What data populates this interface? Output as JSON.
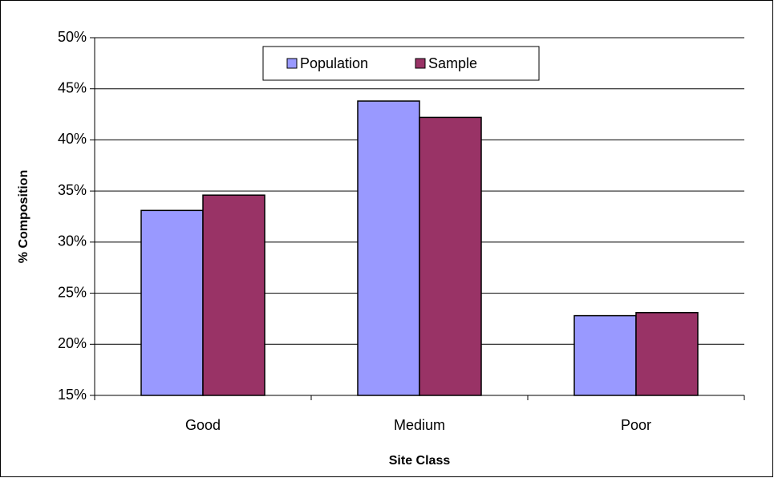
{
  "chart_data": {
    "type": "bar",
    "x_label": "Site Class",
    "y_label": "% Composition",
    "categories": [
      "Good",
      "Medium",
      "Poor"
    ],
    "series": [
      {
        "name": "Population",
        "color": "#9999ff",
        "values": [
          33.1,
          43.8,
          22.8
        ]
      },
      {
        "name": "Sample",
        "color": "#993366",
        "values": [
          34.6,
          42.2,
          23.1
        ]
      }
    ],
    "ylim": [
      15,
      50
    ],
    "yticks": [
      {
        "value": 15,
        "label": "15%"
      },
      {
        "value": 20,
        "label": "20%"
      },
      {
        "value": 25,
        "label": "25%"
      },
      {
        "value": 30,
        "label": "30%"
      },
      {
        "value": 35,
        "label": "35%"
      },
      {
        "value": 40,
        "label": "40%"
      },
      {
        "value": 45,
        "label": "45%"
      },
      {
        "value": 50,
        "label": "50%"
      }
    ],
    "grid": true,
    "legend": "top"
  }
}
